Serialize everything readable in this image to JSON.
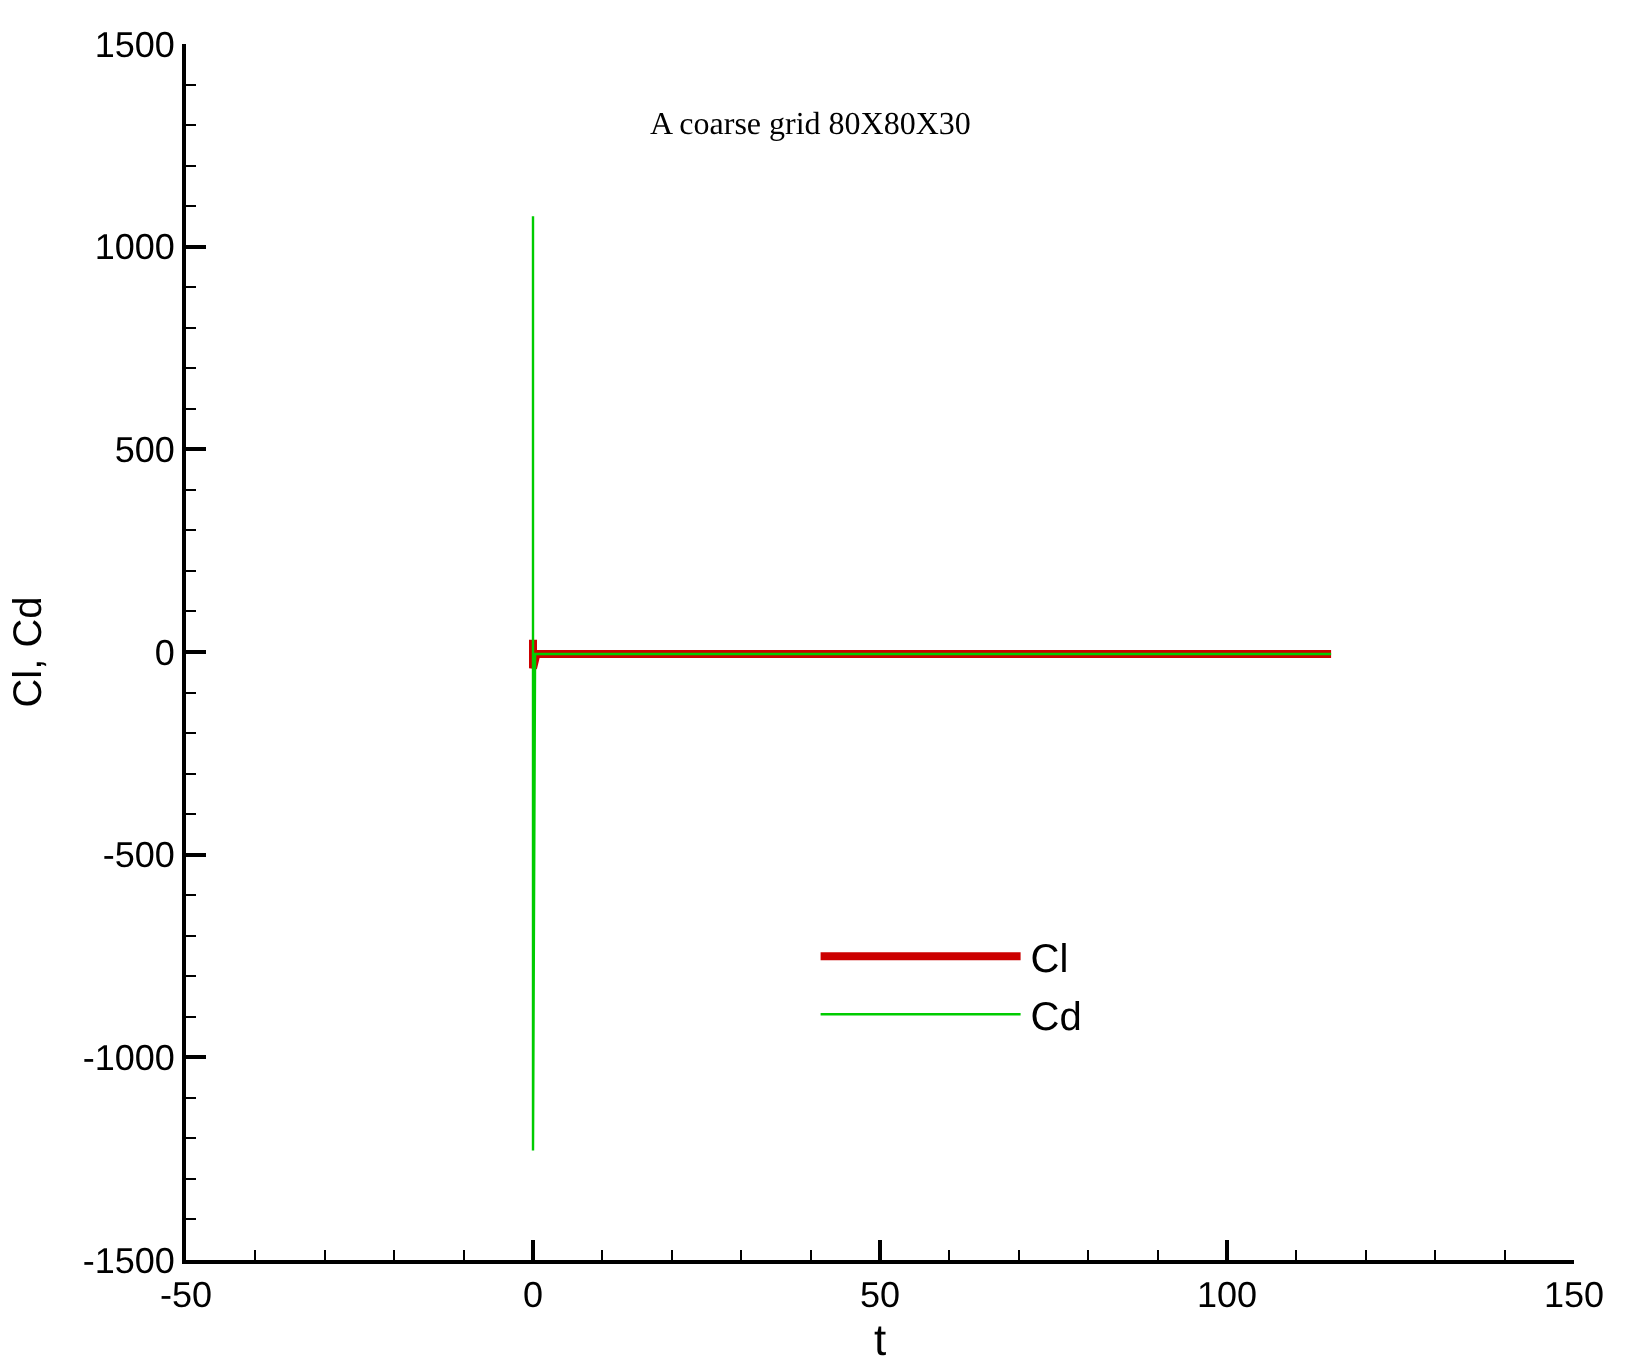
{
  "chart_data": {
    "type": "line",
    "xlabel": "t",
    "ylabel": "Cl, Cd",
    "annotations": [
      "A coarse grid 80X80X30"
    ],
    "xlim": [
      -50,
      150
    ],
    "xticks": [
      -50,
      0,
      50,
      100,
      150
    ],
    "ylim": [
      -1500,
      1500
    ],
    "yticks": [
      -1500,
      -1000,
      -500,
      0,
      500,
      1000,
      1500
    ],
    "legend": "bottom",
    "marker": "none",
    "line_style": "solid",
    "series": [
      {
        "name": "Cl",
        "color": "#cc0000",
        "x": [
          0,
          0,
          0,
          0.5,
          115
        ],
        "values": [
          0,
          30,
          -40,
          -5,
          -5
        ]
      },
      {
        "name": "Cd",
        "color": "#00cc00",
        "x": [
          0,
          0,
          0,
          0.3,
          115
        ],
        "values": [
          0,
          1075,
          -1230,
          -5,
          -5
        ]
      }
    ]
  }
}
